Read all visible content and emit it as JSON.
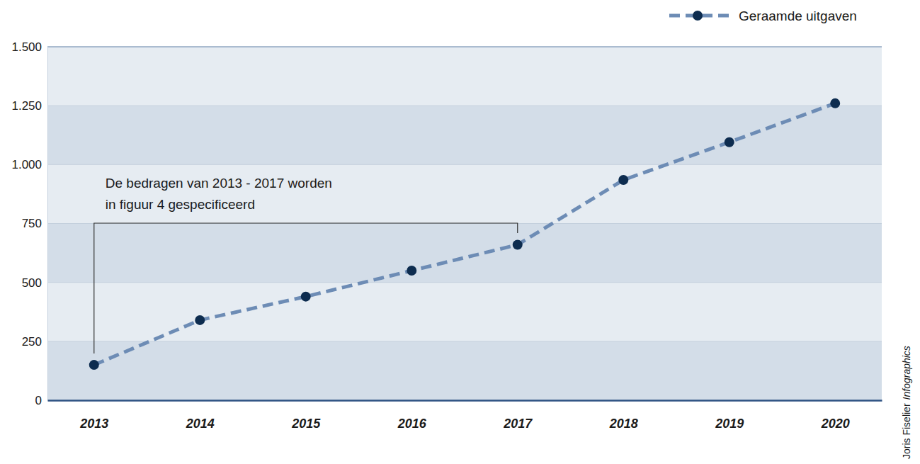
{
  "chart_data": {
    "type": "line",
    "categories": [
      "2013",
      "2014",
      "2015",
      "2016",
      "2017",
      "2018",
      "2019",
      "2020"
    ],
    "series": [
      {
        "name": "Geraamde uitgaven",
        "color": "#6d8cb5",
        "marker": "circle",
        "line_style": "dashed",
        "values": [
          150,
          340,
          440,
          550,
          660,
          935,
          1095,
          1260
        ]
      }
    ],
    "ylim": [
      0,
      1500
    ],
    "yticks": [
      0,
      250,
      500,
      750,
      {
        "value": 1000,
        "label": "1.000"
      },
      {
        "value": 1250,
        "label": "1.250"
      },
      {
        "value": 1500,
        "label": "1.500"
      }
    ],
    "grid": true,
    "legend": "top-right",
    "annotations": [
      {
        "text": [
          "De bedragen van 2013 - 2017 worden",
          "in figuur 4 gespecificeerd"
        ],
        "span": [
          "2013",
          "2017"
        ]
      }
    ],
    "credit": [
      "Joris Fiselier",
      "Infographics"
    ]
  }
}
